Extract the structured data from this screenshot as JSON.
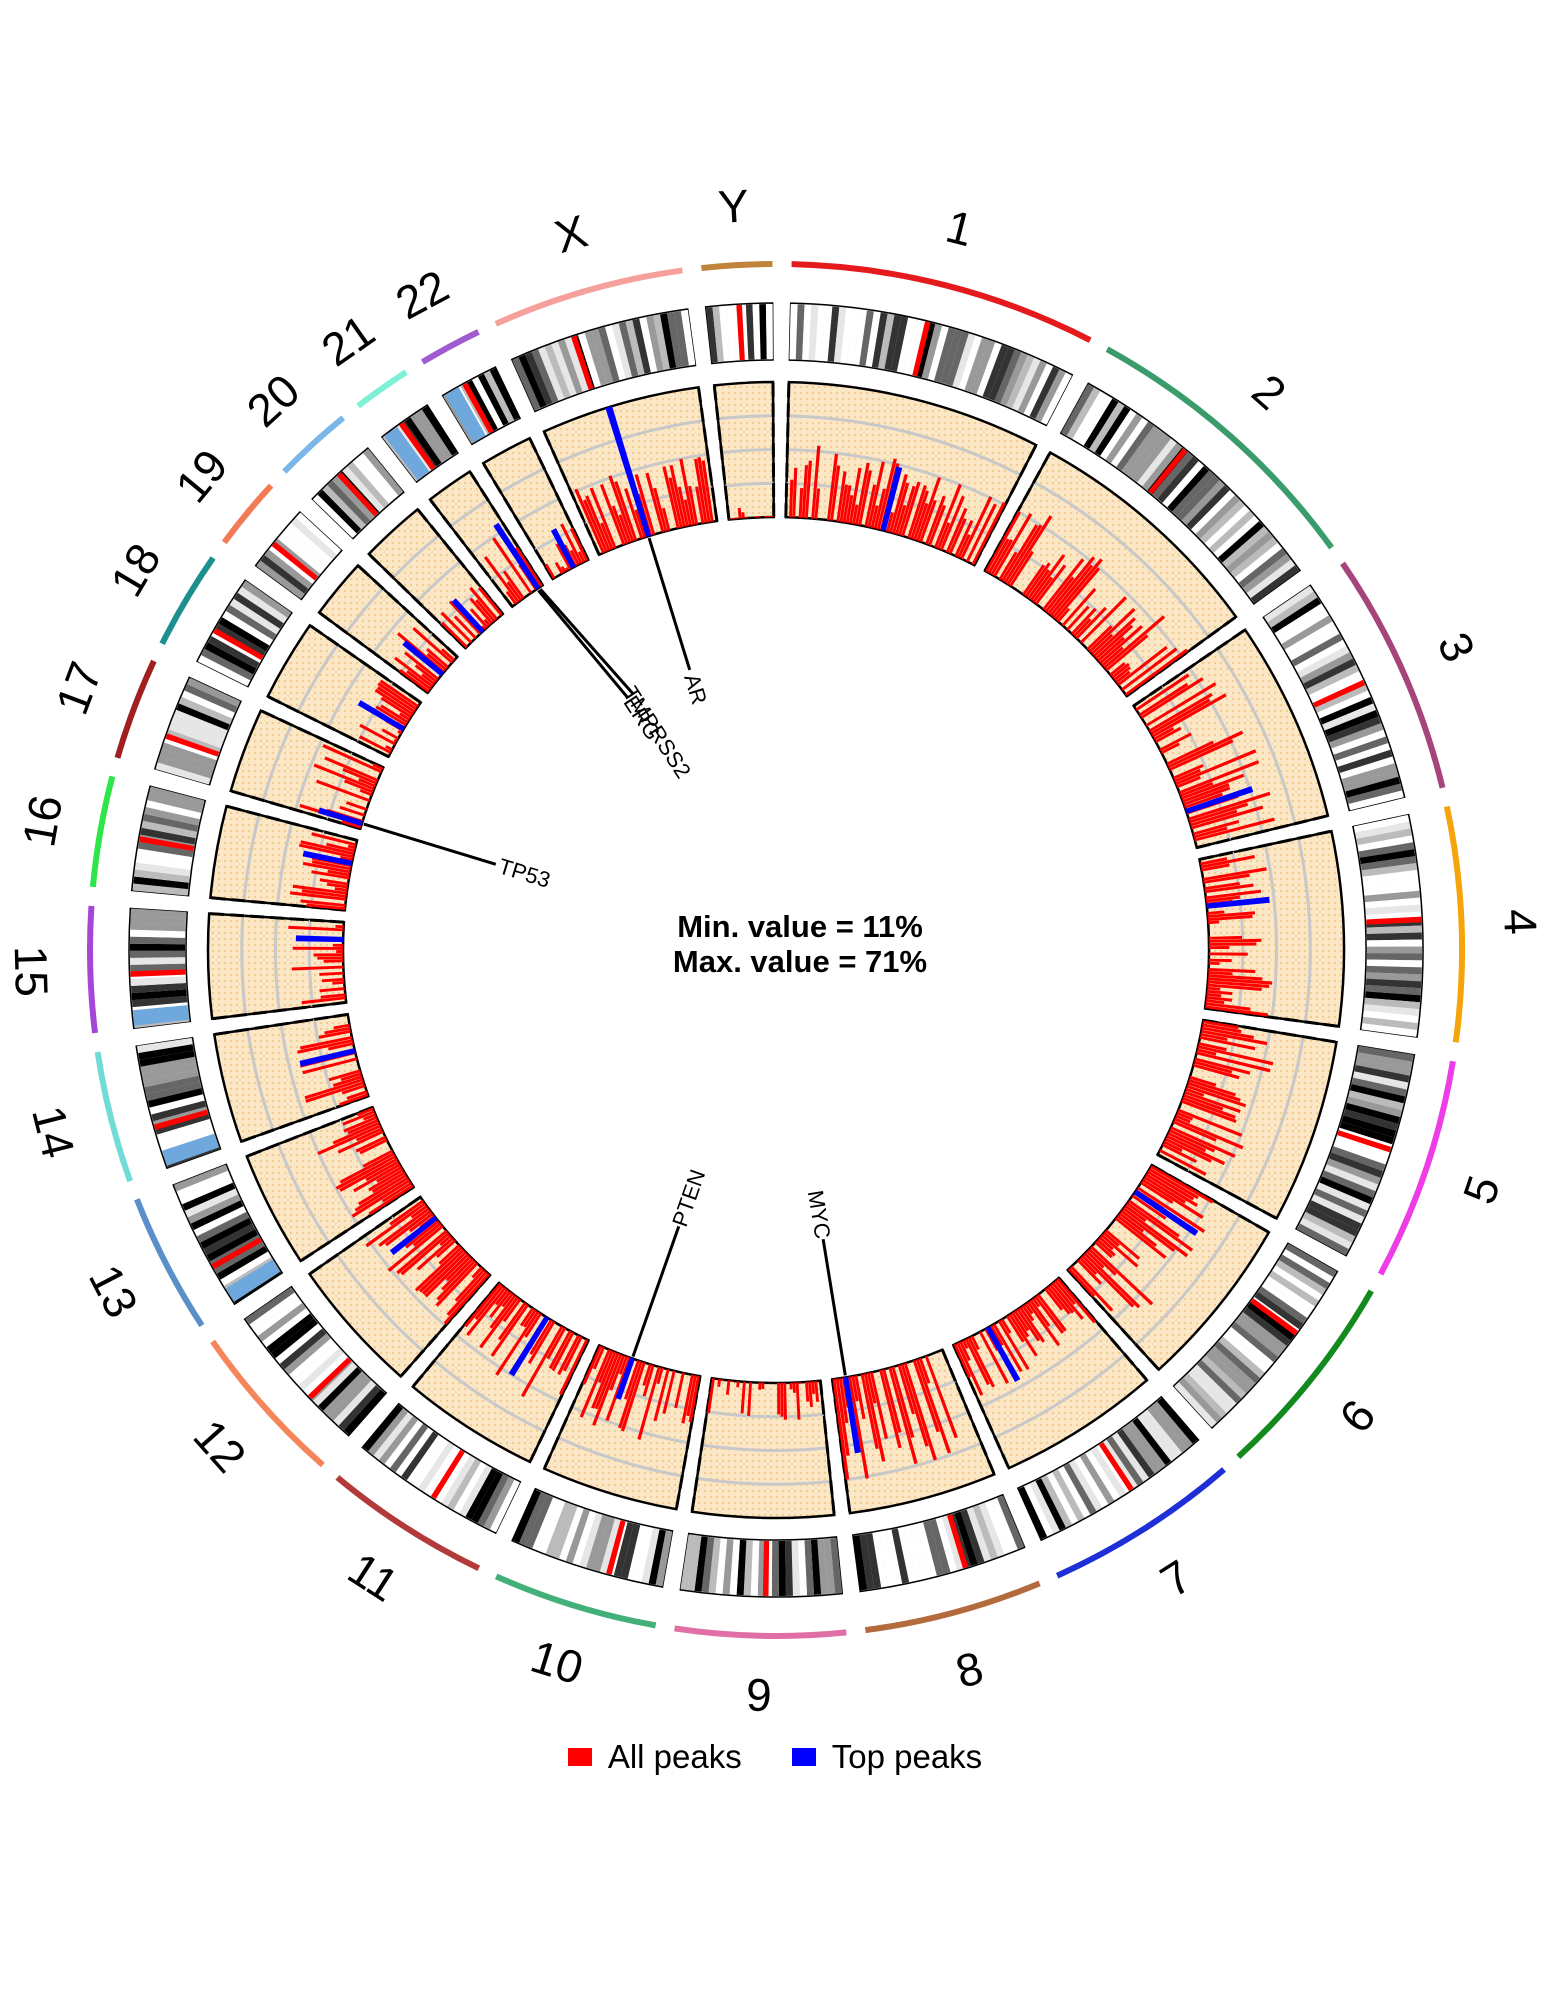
{
  "chart_data": {
    "type": "circos",
    "title": "",
    "center_text": {
      "min_line": "Min. value = 11%",
      "max_line": "Max. value = 71%"
    },
    "value_range": [
      11,
      71
    ],
    "legend": [
      {
        "label": "All peaks",
        "color": "#ff0000"
      },
      {
        "label": "Top peaks",
        "color": "#0000ff"
      }
    ],
    "chromosomes": [
      {
        "name": "1",
        "length": 249,
        "color": "#e41a1c"
      },
      {
        "name": "2",
        "length": 242,
        "color": "#3a9c6b"
      },
      {
        "name": "3",
        "length": 198,
        "color": "#a6447c"
      },
      {
        "name": "4",
        "length": 190,
        "color": "#f5a40a"
      },
      {
        "name": "5",
        "length": 181,
        "color": "#ee3ce6"
      },
      {
        "name": "6",
        "length": 171,
        "color": "#138a1d"
      },
      {
        "name": "7",
        "length": 159,
        "color": "#1f2fd6"
      },
      {
        "name": "8",
        "length": 145,
        "color": "#b36a3c"
      },
      {
        "name": "9",
        "length": 138,
        "color": "#df6fa5"
      },
      {
        "name": "10",
        "length": 134,
        "color": "#43b07a"
      },
      {
        "name": "11",
        "length": 135,
        "color": "#b23a3a"
      },
      {
        "name": "12",
        "length": 133,
        "color": "#f5865a"
      },
      {
        "name": "13",
        "length": 114,
        "color": "#5b8fc8"
      },
      {
        "name": "14",
        "length": 107,
        "color": "#6fdcd8"
      },
      {
        "name": "15",
        "length": 102,
        "color": "#a547d6"
      },
      {
        "name": "16",
        "length": 90,
        "color": "#2ee54a"
      },
      {
        "name": "17",
        "length": 83,
        "color": "#a01f1f"
      },
      {
        "name": "18",
        "length": 80,
        "color": "#1d8f8f"
      },
      {
        "name": "19",
        "length": 59,
        "color": "#f27a55"
      },
      {
        "name": "20",
        "length": 64,
        "color": "#7ab7e8"
      },
      {
        "name": "21",
        "length": 47,
        "color": "#7ef0d6"
      },
      {
        "name": "22",
        "length": 51,
        "color": "#a15bd1"
      },
      {
        "name": "X",
        "length": 156,
        "color": "#f5a09a"
      },
      {
        "name": "Y",
        "length": 57,
        "color": "#c0833a"
      }
    ],
    "gene_annotations": [
      {
        "gene": "AR",
        "chrom": "X",
        "position": 67
      },
      {
        "gene": "TMPRSS2",
        "chrom": "21",
        "position": 42
      },
      {
        "gene": "ERG",
        "chrom": "21",
        "position": 39
      },
      {
        "gene": "TP53",
        "chrom": "17",
        "position": 7
      },
      {
        "gene": "PTEN",
        "chrom": "10",
        "position": 89
      },
      {
        "gene": "MYC",
        "chrom": "8",
        "position": 128
      }
    ],
    "peak_profile": [
      {
        "chrom": "1",
        "start": 0,
        "end": 249,
        "mean": 30,
        "top": [
          [
            125,
            40
          ]
        ]
      },
      {
        "chrom": "2",
        "start": 0,
        "end": 242,
        "mean": 33,
        "top": []
      },
      {
        "chrom": "3",
        "start": 0,
        "end": 198,
        "mean": 36,
        "top": [
          [
            150,
            42
          ]
        ]
      },
      {
        "chrom": "4",
        "start": 0,
        "end": 190,
        "mean": 28,
        "top": [
          [
            60,
            39
          ]
        ]
      },
      {
        "chrom": "5",
        "start": 0,
        "end": 181,
        "mean": 32,
        "top": []
      },
      {
        "chrom": "6",
        "start": 0,
        "end": 171,
        "mean": 34,
        "top": [
          [
            40,
            44
          ]
        ]
      },
      {
        "chrom": "7",
        "start": 0,
        "end": 159,
        "mean": 26,
        "top": [
          [
            110,
            38
          ]
        ]
      },
      {
        "chrom": "8",
        "start": 0,
        "end": 145,
        "mean": 40,
        "top": [
          [
            128,
            45
          ]
        ]
      },
      {
        "chrom": "9",
        "start": 0,
        "end": 138,
        "mean": 20,
        "top": []
      },
      {
        "chrom": "10",
        "start": 0,
        "end": 134,
        "mean": 31,
        "top": [
          [
            89,
            30
          ]
        ]
      },
      {
        "chrom": "11",
        "start": 0,
        "end": 135,
        "mean": 33,
        "top": [
          [
            60,
            41
          ]
        ]
      },
      {
        "chrom": "12",
        "start": 0,
        "end": 133,
        "mean": 30,
        "top": [
          [
            100,
            36
          ]
        ]
      },
      {
        "chrom": "13",
        "start": 0,
        "end": 114,
        "mean": 30,
        "top": []
      },
      {
        "chrom": "14",
        "start": 0,
        "end": 107,
        "mean": 27,
        "top": [
          [
            60,
            36
          ]
        ]
      },
      {
        "chrom": "15",
        "start": 0,
        "end": 102,
        "mean": 25,
        "top": [
          [
            80,
            32
          ]
        ]
      },
      {
        "chrom": "16",
        "start": 0,
        "end": 90,
        "mean": 25,
        "top": [
          [
            60,
            33
          ]
        ]
      },
      {
        "chrom": "17",
        "start": 0,
        "end": 83,
        "mean": 28,
        "top": [
          [
            7,
            31
          ]
        ]
      },
      {
        "chrom": "18",
        "start": 0,
        "end": 80,
        "mean": 22,
        "top": [
          [
            40,
            34
          ]
        ]
      },
      {
        "chrom": "19",
        "start": 0,
        "end": 59,
        "mean": 27,
        "top": [
          [
            30,
            33
          ]
        ]
      },
      {
        "chrom": "20",
        "start": 0,
        "end": 64,
        "mean": 22,
        "top": [
          [
            30,
            30
          ]
        ]
      },
      {
        "chrom": "21",
        "start": 0,
        "end": 47,
        "mean": 30,
        "top": [
          [
            40,
            45
          ]
        ]
      },
      {
        "chrom": "22",
        "start": 0,
        "end": 51,
        "mean": 22,
        "top": [
          [
            30,
            30
          ]
        ]
      },
      {
        "chrom": "X",
        "start": 0,
        "end": 156,
        "mean": 30,
        "top": [
          [
            67,
            71
          ]
        ]
      },
      {
        "chrom": "Y",
        "start": 0,
        "end": 57,
        "mean": 11,
        "top": []
      }
    ]
  }
}
